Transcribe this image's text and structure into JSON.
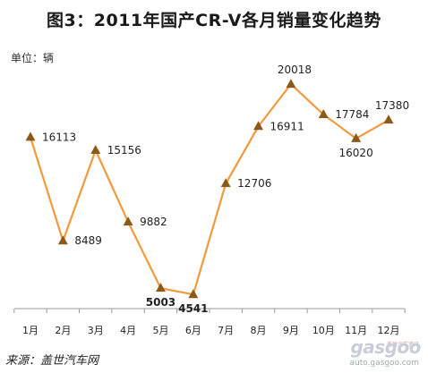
{
  "chart_data": {
    "type": "line",
    "title": "图3：2011年国产CR-V各月销量变化趋势",
    "unit_label": "单位：辆",
    "source_label": "来源：盖世汽车网",
    "categories": [
      "1月",
      "2月",
      "3月",
      "4月",
      "5月",
      "6月",
      "7月",
      "8月",
      "9月",
      "10月",
      "11月",
      "12月"
    ],
    "series": [
      {
        "values": [
          16113,
          8489,
          15156,
          9882,
          5003,
          4541,
          12706,
          16911,
          20018,
          17784,
          16020,
          17380
        ]
      }
    ],
    "ylim": [
      3500,
      22000
    ],
    "grid": false,
    "legend": "none",
    "line_color": "#f09a3c",
    "marker_color": "#8b5a1a",
    "marker": "triangle",
    "bold_labels": [
      4,
      5
    ],
    "label_positions": [
      "right",
      "right",
      "right",
      "right",
      "below",
      "below",
      "right",
      "right",
      "above",
      "right",
      "below",
      "above"
    ]
  },
  "watermark": {
    "logo": "gasgoo",
    "cn": "盖世汽车资讯",
    "url": "auto.gasgoo.com"
  }
}
